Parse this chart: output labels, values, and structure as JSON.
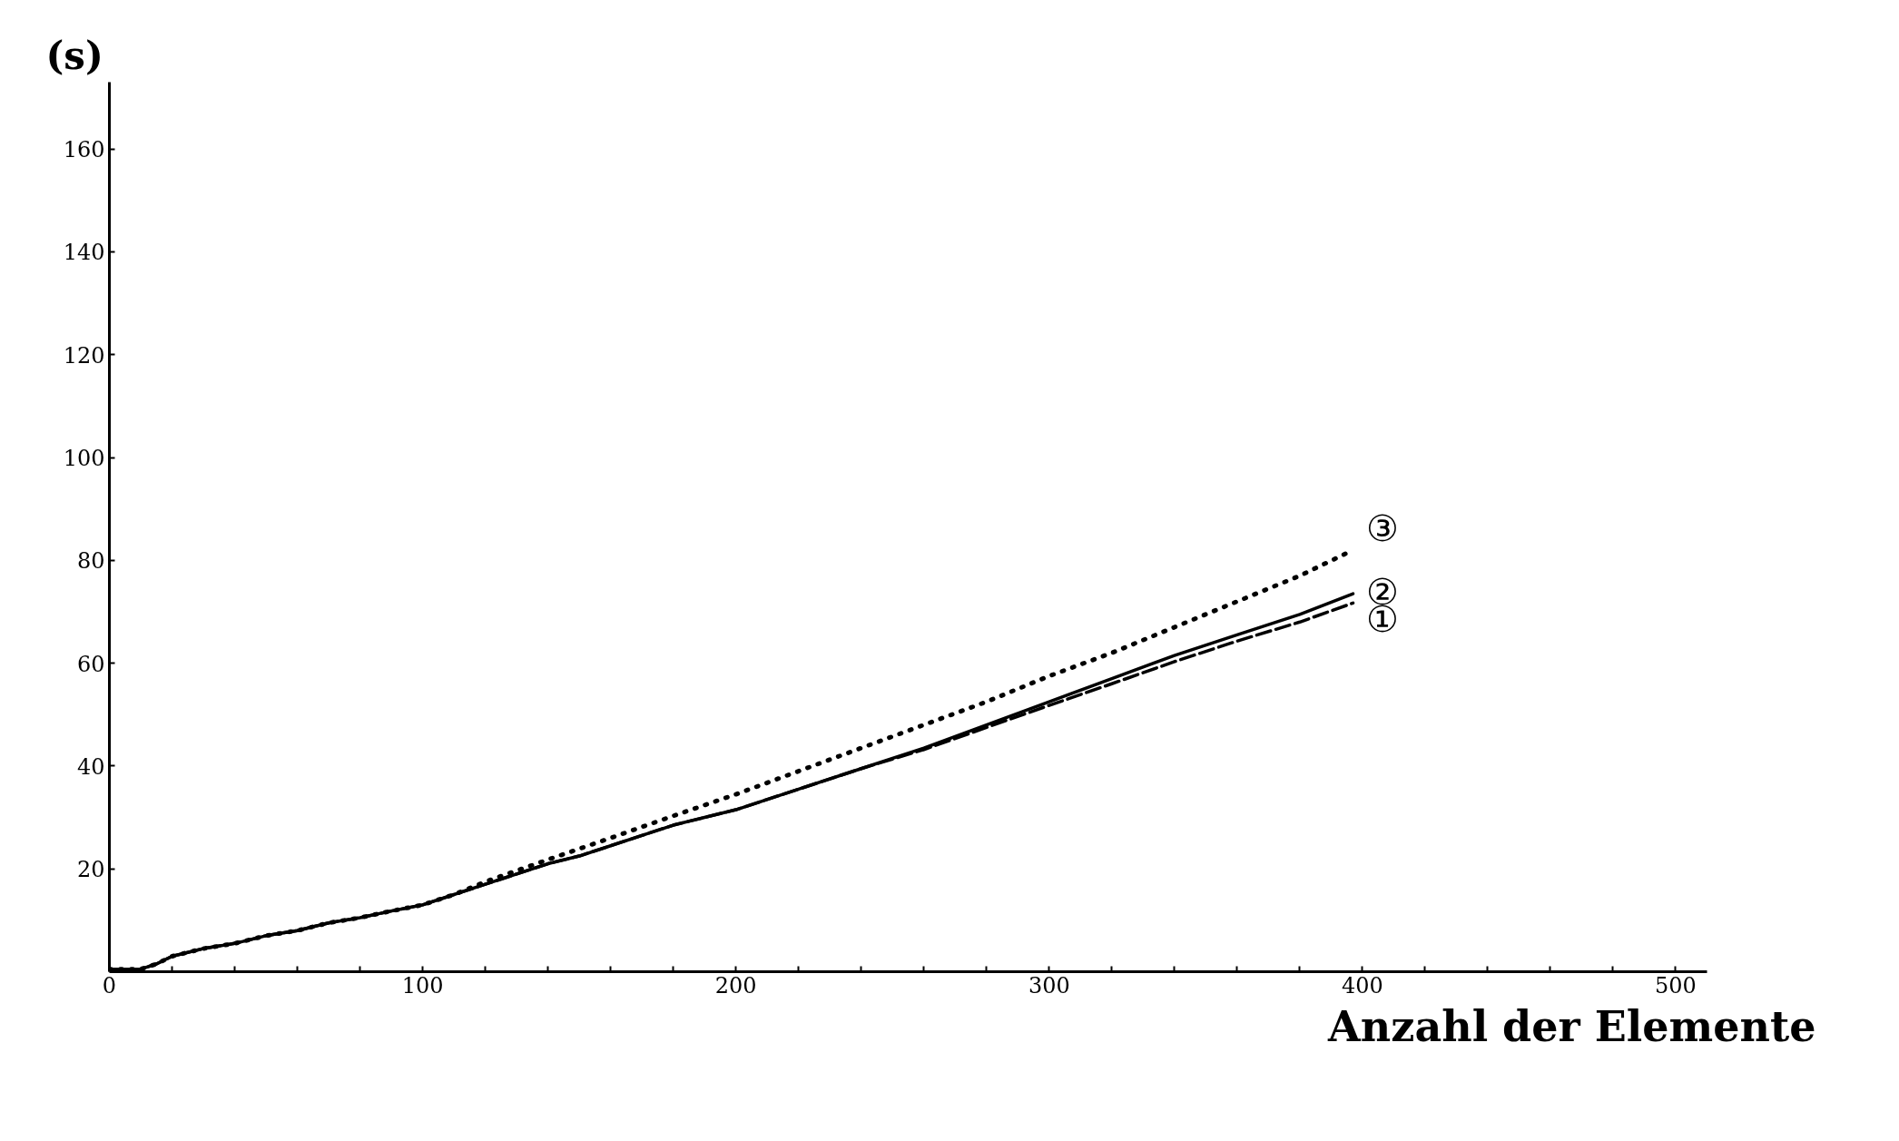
{
  "chart_data": {
    "type": "line",
    "ylabel": "(s)",
    "xlabel": "Anzahl der Elemente",
    "xlim": [
      0,
      510
    ],
    "ylim": [
      0,
      173
    ],
    "xticks": [
      0,
      {
        "value": 20,
        "label": null
      },
      {
        "value": 40,
        "label": null
      },
      {
        "value": 60,
        "label": null
      },
      {
        "value": 80,
        "label": null
      },
      100,
      {
        "value": 120,
        "label": null
      },
      {
        "value": 140,
        "label": null
      },
      {
        "value": 160,
        "label": null
      },
      {
        "value": 180,
        "label": null
      },
      200,
      {
        "value": 220,
        "label": null
      },
      {
        "value": 240,
        "label": null
      },
      {
        "value": 260,
        "label": null
      },
      {
        "value": 280,
        "label": null
      },
      300,
      {
        "value": 320,
        "label": null
      },
      {
        "value": 340,
        "label": null
      },
      {
        "value": 360,
        "label": null
      },
      {
        "value": 380,
        "label": null
      },
      400,
      {
        "value": 420,
        "label": null
      },
      {
        "value": 440,
        "label": null
      },
      {
        "value": 460,
        "label": null
      },
      {
        "value": 480,
        "label": null
      },
      500
    ],
    "yticks": [
      20,
      40,
      60,
      80,
      100,
      120,
      140,
      160
    ],
    "grid": false,
    "marker": "none",
    "series": [
      {
        "name": "①",
        "color": "#000000",
        "line_style": "dashed",
        "x": [
          0,
          10,
          15,
          20,
          30,
          40,
          50,
          60,
          70,
          80,
          90,
          100,
          110,
          120,
          130,
          140,
          150,
          160,
          170,
          180,
          190,
          200,
          220,
          240,
          260,
          280,
          300,
          320,
          340,
          360,
          380,
          397
        ],
        "values": [
          0.5,
          0.5,
          1.5,
          3,
          4.5,
          5.5,
          7,
          8,
          9.5,
          10.5,
          11.8,
          13,
          15,
          17,
          19,
          21,
          22.5,
          24.5,
          26.5,
          28.5,
          30,
          31.5,
          35.5,
          39.5,
          43.2,
          47.5,
          51.8,
          56,
          60.3,
          64.3,
          68,
          71.7
        ]
      },
      {
        "name": "②",
        "color": "#000000",
        "line_style": "solid",
        "x": [
          0,
          10,
          15,
          20,
          30,
          40,
          50,
          60,
          70,
          80,
          90,
          100,
          110,
          120,
          130,
          140,
          150,
          160,
          170,
          180,
          190,
          200,
          220,
          240,
          260,
          280,
          300,
          320,
          340,
          360,
          380,
          397
        ],
        "values": [
          0.5,
          0.5,
          1.5,
          3,
          4.5,
          5.5,
          7,
          8,
          9.5,
          10.5,
          11.8,
          13,
          15,
          17,
          19,
          21,
          22.5,
          24.5,
          26.5,
          28.5,
          30,
          31.5,
          35.5,
          39.5,
          43.5,
          48,
          52.5,
          57,
          61.5,
          65.5,
          69.5,
          73.5
        ]
      },
      {
        "name": "③",
        "color": "#000000",
        "line_style": "dotted",
        "x": [
          0,
          10,
          15,
          20,
          30,
          40,
          50,
          60,
          70,
          80,
          90,
          100,
          110,
          120,
          140,
          160,
          180,
          200,
          220,
          240,
          260,
          280,
          300,
          320,
          340,
          360,
          380,
          397
        ],
        "values": [
          0.5,
          0.5,
          1.5,
          3,
          4.5,
          5.5,
          7,
          8,
          9.5,
          10.5,
          11.8,
          13,
          15,
          17.5,
          21.8,
          26,
          30.3,
          34.5,
          39,
          43.5,
          48,
          52.5,
          57.5,
          62,
          67,
          72,
          77,
          82
        ]
      }
    ]
  }
}
